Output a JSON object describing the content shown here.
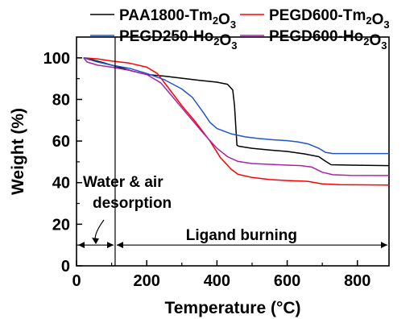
{
  "chart_data": {
    "type": "line",
    "xlabel": "Temperature (°C)",
    "ylabel": "Weight (%)",
    "xlim": [
      0,
      890
    ],
    "ylim": [
      0,
      110
    ],
    "xticks": [
      "0",
      "200",
      "400",
      "600",
      "800"
    ],
    "yticks": [
      "0",
      "20",
      "40",
      "60",
      "80",
      "100"
    ],
    "legend_position": "top, two columns above the plot",
    "series": [
      {
        "name": "PAA1800-Tm₂O₃",
        "color": "#000000",
        "points": [
          [
            20,
            100
          ],
          [
            40,
            99.3
          ],
          [
            80,
            97.5
          ],
          [
            120,
            95.5
          ],
          [
            160,
            93.6
          ],
          [
            200,
            92
          ],
          [
            250,
            91.2
          ],
          [
            300,
            90.2
          ],
          [
            350,
            89.2
          ],
          [
            400,
            88.3
          ],
          [
            430,
            87.3
          ],
          [
            445,
            84.5
          ],
          [
            450,
            77
          ],
          [
            454,
            66
          ],
          [
            457,
            58
          ],
          [
            462,
            57.5
          ],
          [
            500,
            56.5
          ],
          [
            550,
            55.7
          ],
          [
            600,
            55
          ],
          [
            650,
            53.8
          ],
          [
            690,
            52.5
          ],
          [
            710,
            50.2
          ],
          [
            725,
            48.6
          ],
          [
            780,
            48.4
          ],
          [
            890,
            48.2
          ]
        ]
      },
      {
        "name": "PEGD600-Tm₂O₃",
        "color": "#ff0000",
        "points": [
          [
            20,
            100
          ],
          [
            60,
            99.5
          ],
          [
            100,
            98.5
          ],
          [
            150,
            97.5
          ],
          [
            200,
            95.5
          ],
          [
            230,
            92.5
          ],
          [
            260,
            86
          ],
          [
            300,
            77
          ],
          [
            340,
            69
          ],
          [
            380,
            60
          ],
          [
            410,
            52
          ],
          [
            440,
            46.5
          ],
          [
            460,
            44
          ],
          [
            500,
            42.5
          ],
          [
            550,
            41.5
          ],
          [
            600,
            41
          ],
          [
            640,
            40.8
          ],
          [
            660,
            40.6
          ],
          [
            680,
            40
          ],
          [
            700,
            39.4
          ],
          [
            750,
            39
          ],
          [
            890,
            38.8
          ]
        ]
      },
      {
        "name": "PEGD250-Ho₂O₃",
        "color": "#2255cc",
        "points": [
          [
            20,
            100
          ],
          [
            60,
            98
          ],
          [
            100,
            96.5
          ],
          [
            150,
            95
          ],
          [
            200,
            92.5
          ],
          [
            250,
            89.5
          ],
          [
            300,
            85
          ],
          [
            330,
            81
          ],
          [
            360,
            74
          ],
          [
            380,
            69
          ],
          [
            400,
            66
          ],
          [
            440,
            63.5
          ],
          [
            480,
            62
          ],
          [
            520,
            61.2
          ],
          [
            560,
            60.6
          ],
          [
            600,
            60.2
          ],
          [
            630,
            59.6
          ],
          [
            660,
            58.6
          ],
          [
            690,
            56.5
          ],
          [
            710,
            54.5
          ],
          [
            730,
            54
          ],
          [
            890,
            54
          ]
        ]
      },
      {
        "name": "PEGD600-Ho₂O₃",
        "color": "#aa22aa",
        "points": [
          [
            20,
            100
          ],
          [
            30,
            98
          ],
          [
            60,
            96.5
          ],
          [
            100,
            95.5
          ],
          [
            150,
            94
          ],
          [
            200,
            92
          ],
          [
            240,
            88
          ],
          [
            280,
            80
          ],
          [
            320,
            72
          ],
          [
            360,
            64
          ],
          [
            400,
            56.5
          ],
          [
            430,
            52.5
          ],
          [
            460,
            50.2
          ],
          [
            500,
            49.2
          ],
          [
            550,
            48.8
          ],
          [
            600,
            48.4
          ],
          [
            640,
            48.2
          ],
          [
            670,
            47.5
          ],
          [
            700,
            45
          ],
          [
            730,
            43.8
          ],
          [
            780,
            43.5
          ],
          [
            890,
            43.4
          ]
        ]
      }
    ],
    "vertical_line_x": 110,
    "annotations": [
      {
        "id": "water",
        "lines": [
          "Water & air",
          "desorption"
        ]
      },
      {
        "id": "ligand",
        "text": "Ligand burning"
      }
    ],
    "arrow_line_y": 10
  }
}
